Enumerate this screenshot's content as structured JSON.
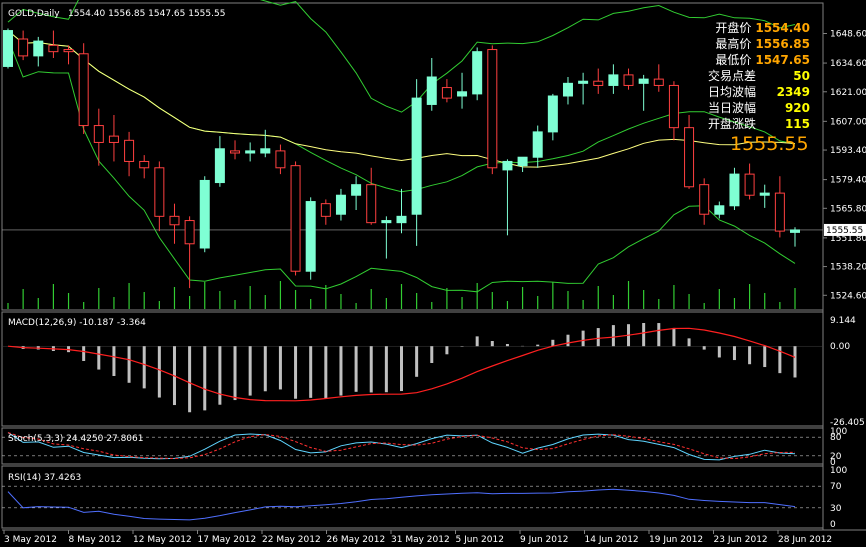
{
  "title": "GOLD,Daily",
  "ohlc_header": "1554.40 1556.85 1547.65 1555.55",
  "info_panel": [
    {
      "label": "开盘价",
      "value": "1554.40",
      "color": "#ffa500"
    },
    {
      "label": "最高价",
      "value": "1556.85",
      "color": "#ffa500"
    },
    {
      "label": "最低价",
      "value": "1547.65",
      "color": "#ffa500"
    },
    {
      "label": "交易点差",
      "value": "50",
      "color": "#ffff00"
    },
    {
      "label": "日均波幅",
      "value": "2349",
      "color": "#ffff00"
    },
    {
      "label": "当日波幅",
      "value": "920",
      "color": "#ffff00"
    },
    {
      "label": "开盘涨跌",
      "value": "115",
      "color": "#ffff00"
    }
  ],
  "big_price": "1555.55",
  "colors": {
    "bull": "#7fffd4",
    "bear": "#ff4040",
    "line_green": "#32cd32",
    "line_yellow": "#ffff80",
    "macd_bar": "#c0c0c0",
    "signal": "#ff2020",
    "stoch_main": "#5fd5ff",
    "stoch_signal": "#ff3030",
    "rsi": "#4f6fff",
    "grid": "#808080"
  },
  "main_axis": {
    "ticks": [
      "1648.60",
      "1634.60",
      "1621.00",
      "1607.00",
      "1593.40",
      "1579.40",
      "1565.80",
      "1551.80",
      "1538.20",
      "1524.60"
    ],
    "current": "1555.55"
  },
  "macd": {
    "label": "MACD(12,26,9) -10.187 -3.364",
    "ticks": [
      "9.144",
      "0.00",
      "-26.405"
    ]
  },
  "stoch": {
    "label": "Stoch(5,3,3) 24.4250 27.8061",
    "ticks": [
      "100",
      "80",
      "20",
      "0"
    ]
  },
  "rsi": {
    "label": "RSI(14) 37.4263",
    "ticks": [
      "100",
      "70",
      "30",
      "0"
    ]
  },
  "dates": [
    "3 May 2012",
    "8 May 2012",
    "12 May 2012",
    "17 May 2012",
    "22 May 2012",
    "26 May 2012",
    "31 May 2012",
    "5 Jun 2012",
    "9 Jun 2012",
    "14 Jun 2012",
    "19 Jun 2012",
    "23 Jun 2012",
    "28 Jun 2012"
  ],
  "chart_data": {
    "type": "candlestick",
    "y_range": [
      1520,
      1655
    ],
    "candles": [
      {
        "o": 1633,
        "h": 1651,
        "l": 1632,
        "c": 1650
      },
      {
        "o": 1646,
        "h": 1650,
        "l": 1636,
        "c": 1638
      },
      {
        "o": 1638,
        "h": 1647,
        "l": 1633,
        "c": 1645
      },
      {
        "o": 1643,
        "h": 1650,
        "l": 1637,
        "c": 1640
      },
      {
        "o": 1641,
        "h": 1643,
        "l": 1634,
        "c": 1640
      },
      {
        "o": 1639,
        "h": 1644,
        "l": 1601,
        "c": 1605
      },
      {
        "o": 1605,
        "h": 1613,
        "l": 1586,
        "c": 1597
      },
      {
        "o": 1600,
        "h": 1610,
        "l": 1588,
        "c": 1597
      },
      {
        "o": 1598,
        "h": 1602,
        "l": 1581,
        "c": 1588
      },
      {
        "o": 1588,
        "h": 1591,
        "l": 1580,
        "c": 1585
      },
      {
        "o": 1585,
        "h": 1588,
        "l": 1555,
        "c": 1562
      },
      {
        "o": 1562,
        "h": 1568,
        "l": 1549,
        "c": 1558
      },
      {
        "o": 1560,
        "h": 1562,
        "l": 1528,
        "c": 1549
      },
      {
        "o": 1547,
        "h": 1581,
        "l": 1545,
        "c": 1579
      },
      {
        "o": 1578,
        "h": 1600,
        "l": 1576,
        "c": 1594
      },
      {
        "o": 1593,
        "h": 1598,
        "l": 1589,
        "c": 1592
      },
      {
        "o": 1592,
        "h": 1597,
        "l": 1588,
        "c": 1593
      },
      {
        "o": 1592,
        "h": 1603,
        "l": 1590,
        "c": 1594
      },
      {
        "o": 1593,
        "h": 1596,
        "l": 1582,
        "c": 1585
      },
      {
        "o": 1586,
        "h": 1588,
        "l": 1534,
        "c": 1536
      },
      {
        "o": 1536,
        "h": 1571,
        "l": 1532,
        "c": 1569
      },
      {
        "o": 1568,
        "h": 1570,
        "l": 1558,
        "c": 1562
      },
      {
        "o": 1563,
        "h": 1575,
        "l": 1560,
        "c": 1572
      },
      {
        "o": 1572,
        "h": 1581,
        "l": 1565,
        "c": 1577
      },
      {
        "o": 1577,
        "h": 1585,
        "l": 1558,
        "c": 1559
      },
      {
        "o": 1559,
        "h": 1562,
        "l": 1542,
        "c": 1560
      },
      {
        "o": 1559,
        "h": 1575,
        "l": 1554,
        "c": 1562
      },
      {
        "o": 1563,
        "h": 1627,
        "l": 1548,
        "c": 1618
      },
      {
        "o": 1615,
        "h": 1637,
        "l": 1612,
        "c": 1628
      },
      {
        "o": 1623,
        "h": 1627,
        "l": 1616,
        "c": 1618
      },
      {
        "o": 1619,
        "h": 1630,
        "l": 1613,
        "c": 1621
      },
      {
        "o": 1620,
        "h": 1642,
        "l": 1617,
        "c": 1640
      },
      {
        "o": 1641,
        "h": 1643,
        "l": 1582,
        "c": 1585
      },
      {
        "o": 1584,
        "h": 1589,
        "l": 1553,
        "c": 1588
      },
      {
        "o": 1586,
        "h": 1590,
        "l": 1583,
        "c": 1590
      },
      {
        "o": 1590,
        "h": 1605,
        "l": 1585,
        "c": 1602
      },
      {
        "o": 1602,
        "h": 1620,
        "l": 1598,
        "c": 1619
      },
      {
        "o": 1619,
        "h": 1628,
        "l": 1615,
        "c": 1625
      },
      {
        "o": 1625,
        "h": 1630,
        "l": 1615,
        "c": 1626
      },
      {
        "o": 1626,
        "h": 1632,
        "l": 1620,
        "c": 1624
      },
      {
        "o": 1624,
        "h": 1634,
        "l": 1620,
        "c": 1629
      },
      {
        "o": 1629,
        "h": 1632,
        "l": 1622,
        "c": 1624
      },
      {
        "o": 1625,
        "h": 1629,
        "l": 1612,
        "c": 1627
      },
      {
        "o": 1627,
        "h": 1634,
        "l": 1621,
        "c": 1624
      },
      {
        "o": 1624,
        "h": 1626,
        "l": 1598,
        "c": 1604
      },
      {
        "o": 1604,
        "h": 1610,
        "l": 1575,
        "c": 1576
      },
      {
        "o": 1577,
        "h": 1580,
        "l": 1558,
        "c": 1563
      },
      {
        "o": 1563,
        "h": 1569,
        "l": 1561,
        "c": 1567
      },
      {
        "o": 1567,
        "h": 1585,
        "l": 1565,
        "c": 1582
      },
      {
        "o": 1582,
        "h": 1587,
        "l": 1570,
        "c": 1572
      },
      {
        "o": 1572,
        "h": 1577,
        "l": 1566,
        "c": 1573
      },
      {
        "o": 1573,
        "h": 1581,
        "l": 1552,
        "c": 1555
      },
      {
        "o": 1554.4,
        "h": 1556.85,
        "l": 1547.65,
        "c": 1555.55
      }
    ]
  }
}
